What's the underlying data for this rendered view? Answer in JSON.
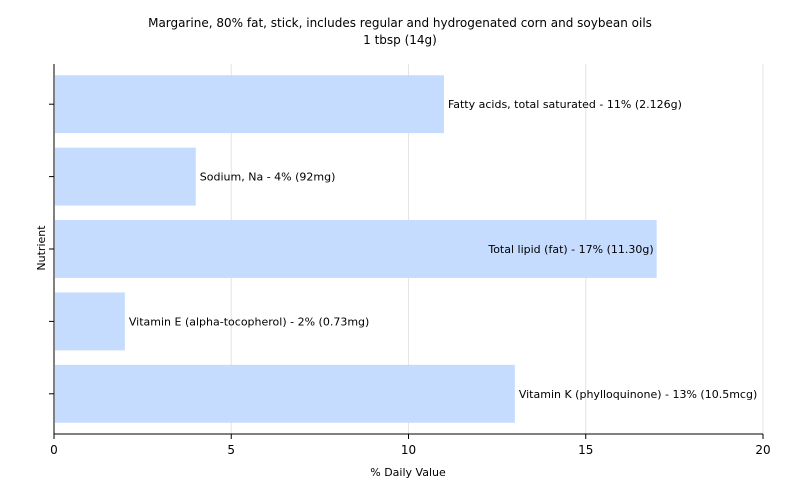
{
  "chart_data": {
    "type": "bar",
    "orientation": "horizontal",
    "title": "Margarine, 80% fat, stick, includes regular and hydrogenated corn and soybean oils",
    "subtitle": "1 tbsp (14g)",
    "xlabel": "% Daily Value",
    "ylabel": "Nutrient",
    "xlim": [
      0,
      20
    ],
    "xticks": [
      0,
      5,
      10,
      15,
      20
    ],
    "grid": true,
    "bar_color": "#c6dcff",
    "categories": [
      "Fatty acids, total saturated",
      "Sodium, Na",
      "Total lipid (fat)",
      "Vitamin E (alpha-tocopherol)",
      "Vitamin K (phylloquinone)"
    ],
    "values": [
      11,
      4,
      17,
      2,
      13
    ],
    "labels": [
      "Fatty acids, total saturated - 11% (2.126g)",
      "Sodium, Na - 4% (92mg)",
      "Total lipid (fat) - 17% (11.30g)",
      "Vitamin E (alpha-tocopherol) - 2% (0.73mg)",
      "Vitamin K (phylloquinone) - 13% (10.5mcg)"
    ]
  }
}
